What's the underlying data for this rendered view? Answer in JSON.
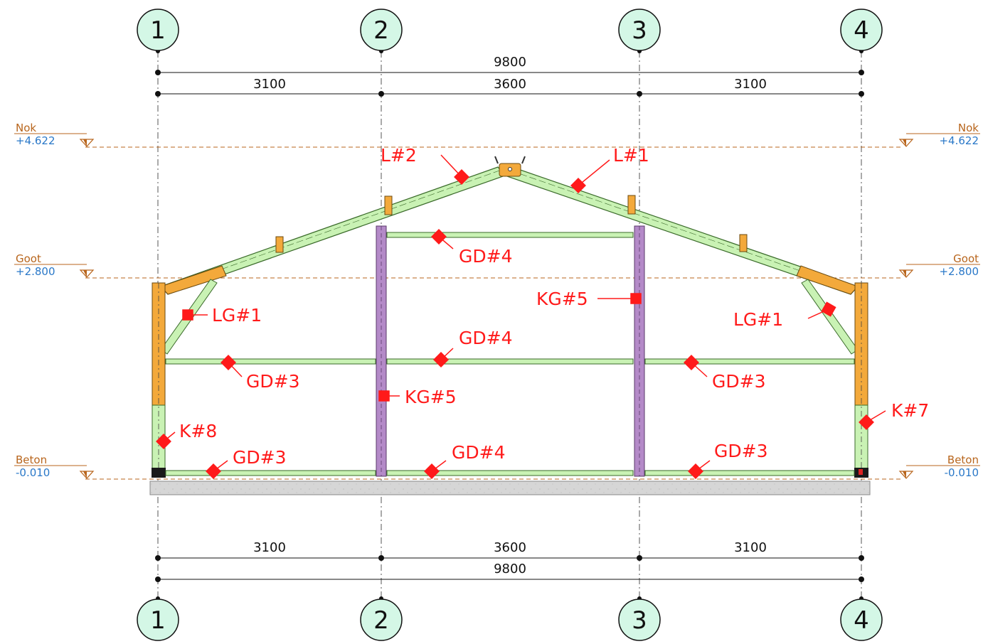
{
  "axes": [
    "1",
    "2",
    "3",
    "4"
  ],
  "dimensions": {
    "total": "9800",
    "spans": [
      "3100",
      "3600",
      "3100"
    ]
  },
  "levels": {
    "nok": {
      "name": "Nok",
      "value": "+4.622"
    },
    "goot": {
      "name": "Goot",
      "value": "+2.800"
    },
    "beton": {
      "name": "Beton",
      "value": "-0.010"
    }
  },
  "tags": {
    "l2": "L#2",
    "l1": "L#1",
    "gd4_top": "GD#4",
    "kg5_right": "KG#5",
    "lg1_left": "LG#1",
    "lg1_right": "LG#1",
    "gd4_mid": "GD#4",
    "gd3_mid_left": "GD#3",
    "gd3_mid_right": "GD#3",
    "kg5_left": "KG#5",
    "k7": "K#7",
    "k8": "K#8",
    "gd3_bot_left": "GD#3",
    "gd4_bot": "GD#4",
    "gd3_bot_right": "GD#3"
  },
  "colors": {
    "member_green": "#c9f2b4",
    "member_orange": "#f3a93b",
    "column_purple": "#b48ac8",
    "axis_bubble": "#d4f7e6",
    "tag_red": "#ff1a1a",
    "level_brown": "#b8651c",
    "level_blue": "#2a78c8"
  }
}
